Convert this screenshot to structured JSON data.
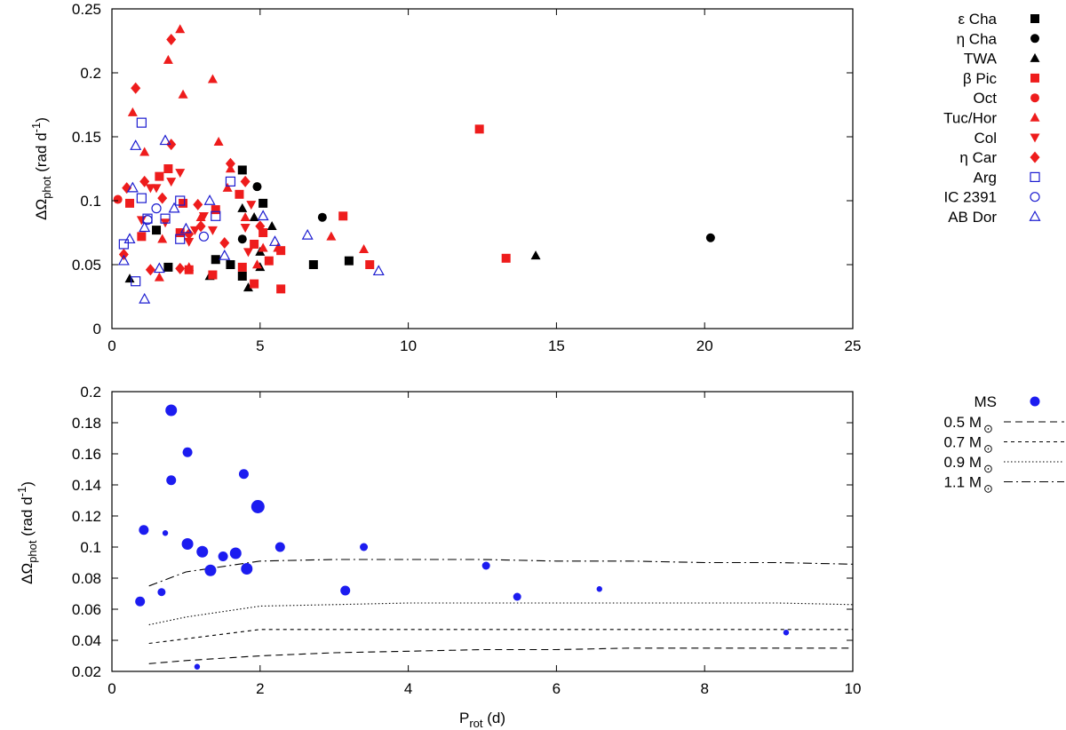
{
  "chart_data": [
    {
      "type": "scatter",
      "title": "",
      "xlabel": "",
      "ylabel_parts": {
        "base": "ΔΩ",
        "sub": "phot",
        "mid": " (rad d",
        "sup": "-1",
        "end": ")"
      },
      "xlim": [
        0,
        25
      ],
      "ylim": [
        0,
        0.25
      ],
      "xticks": [
        0,
        5,
        10,
        15,
        20,
        25
      ],
      "yticks": [
        0,
        0.05,
        0.1,
        0.15,
        0.2,
        0.25
      ],
      "xtick_labels": [
        "0",
        "5",
        "10",
        "15",
        "20",
        "25"
      ],
      "ytick_labels": [
        "0",
        "0.05",
        "0.1",
        "0.15",
        "0.2",
        "0.25"
      ],
      "legend_position": "right",
      "series": [
        {
          "name": "ε Cha",
          "marker": "square",
          "filled": true,
          "color": "#000000",
          "points": [
            [
              1.5,
              0.077
            ],
            [
              1.9,
              0.048
            ],
            [
              3.5,
              0.054
            ],
            [
              4.0,
              0.05
            ],
            [
              4.4,
              0.124
            ],
            [
              4.4,
              0.041
            ],
            [
              5.1,
              0.098
            ],
            [
              6.8,
              0.05
            ],
            [
              8.0,
              0.053
            ]
          ]
        },
        {
          "name": "η Cha",
          "marker": "circle",
          "filled": true,
          "color": "#000000",
          "points": [
            [
              4.4,
              0.07
            ],
            [
              4.9,
              0.111
            ],
            [
              7.1,
              0.087
            ],
            [
              20.2,
              0.071
            ]
          ]
        },
        {
          "name": "TWA",
          "marker": "triangle",
          "filled": true,
          "color": "#000000",
          "points": [
            [
              0.6,
              0.039
            ],
            [
              3.3,
              0.041
            ],
            [
              4.4,
              0.094
            ],
            [
              4.6,
              0.032
            ],
            [
              4.8,
              0.087
            ],
            [
              5.0,
              0.06
            ],
            [
              5.0,
              0.048
            ],
            [
              5.4,
              0.08
            ],
            [
              14.3,
              0.057
            ]
          ]
        },
        {
          "name": "β Pic",
          "marker": "square",
          "filled": true,
          "color": "#ee1c1c",
          "points": [
            [
              0.6,
              0.098
            ],
            [
              1.0,
              0.072
            ],
            [
              1.6,
              0.119
            ],
            [
              1.9,
              0.125
            ],
            [
              2.4,
              0.098
            ],
            [
              2.3,
              0.075
            ],
            [
              2.6,
              0.046
            ],
            [
              3.4,
              0.042
            ],
            [
              3.5,
              0.093
            ],
            [
              4.3,
              0.105
            ],
            [
              4.4,
              0.048
            ],
            [
              4.8,
              0.066
            ],
            [
              4.8,
              0.035
            ],
            [
              5.1,
              0.075
            ],
            [
              5.3,
              0.053
            ],
            [
              5.7,
              0.061
            ],
            [
              5.7,
              0.031
            ],
            [
              7.8,
              0.088
            ],
            [
              8.7,
              0.05
            ],
            [
              12.4,
              0.156
            ],
            [
              13.3,
              0.055
            ]
          ]
        },
        {
          "name": "Oct",
          "marker": "circle",
          "filled": true,
          "color": "#ee1c1c",
          "points": [
            [
              0.2,
              0.101
            ]
          ]
        },
        {
          "name": "Tuc/Hor",
          "marker": "triangle",
          "filled": true,
          "color": "#ee1c1c",
          "points": [
            [
              0.7,
              0.169
            ],
            [
              1.1,
              0.138
            ],
            [
              1.6,
              0.04
            ],
            [
              1.7,
              0.07
            ],
            [
              1.9,
              0.21
            ],
            [
              2.3,
              0.234
            ],
            [
              2.4,
              0.183
            ],
            [
              2.6,
              0.048
            ],
            [
              3.0,
              0.087
            ],
            [
              3.4,
              0.195
            ],
            [
              3.6,
              0.146
            ],
            [
              3.9,
              0.11
            ],
            [
              4.0,
              0.125
            ],
            [
              4.5,
              0.087
            ],
            [
              4.9,
              0.05
            ],
            [
              5.1,
              0.063
            ],
            [
              5.6,
              0.063
            ],
            [
              7.4,
              0.072
            ],
            [
              8.5,
              0.062
            ]
          ]
        },
        {
          "name": "Col",
          "marker": "triangle-down",
          "filled": true,
          "color": "#ee1c1c",
          "points": [
            [
              1.0,
              0.085
            ],
            [
              1.3,
              0.11
            ],
            [
              1.5,
              0.11
            ],
            [
              1.8,
              0.083
            ],
            [
              2.0,
              0.115
            ],
            [
              2.3,
              0.122
            ],
            [
              2.6,
              0.068
            ],
            [
              2.8,
              0.077
            ],
            [
              3.1,
              0.088
            ],
            [
              3.4,
              0.077
            ],
            [
              4.5,
              0.079
            ],
            [
              4.6,
              0.06
            ],
            [
              4.7,
              0.097
            ]
          ]
        },
        {
          "name": "η Car",
          "marker": "diamond",
          "filled": true,
          "color": "#ee1c1c",
          "points": [
            [
              0.4,
              0.058
            ],
            [
              0.5,
              0.11
            ],
            [
              0.8,
              0.188
            ],
            [
              1.1,
              0.115
            ],
            [
              1.3,
              0.046
            ],
            [
              1.7,
              0.102
            ],
            [
              2.0,
              0.144
            ],
            [
              2.0,
              0.226
            ],
            [
              2.3,
              0.047
            ],
            [
              2.6,
              0.074
            ],
            [
              2.9,
              0.097
            ],
            [
              3.0,
              0.08
            ],
            [
              3.8,
              0.067
            ],
            [
              4.0,
              0.129
            ],
            [
              4.5,
              0.115
            ],
            [
              5.0,
              0.08
            ]
          ]
        },
        {
          "name": "Arg",
          "marker": "square",
          "filled": false,
          "color": "#1c1cd0",
          "points": [
            [
              0.4,
              0.066
            ],
            [
              0.8,
              0.037
            ],
            [
              1.0,
              0.161
            ],
            [
              1.0,
              0.102
            ],
            [
              1.2,
              0.086
            ],
            [
              1.8,
              0.086
            ],
            [
              2.3,
              0.1
            ],
            [
              2.3,
              0.07
            ],
            [
              3.5,
              0.088
            ],
            [
              4.0,
              0.115
            ]
          ]
        },
        {
          "name": "IC 2391",
          "marker": "circle",
          "filled": false,
          "color": "#1c1cd0",
          "points": [
            [
              1.2,
              0.085
            ],
            [
              1.5,
              0.094
            ],
            [
              3.1,
              0.072
            ]
          ]
        },
        {
          "name": "AB Dor",
          "marker": "triangle",
          "filled": false,
          "color": "#1c1cd0",
          "points": [
            [
              0.4,
              0.053
            ],
            [
              0.6,
              0.07
            ],
            [
              0.7,
              0.11
            ],
            [
              0.8,
              0.143
            ],
            [
              1.1,
              0.079
            ],
            [
              1.1,
              0.023
            ],
            [
              1.6,
              0.047
            ],
            [
              1.8,
              0.147
            ],
            [
              2.1,
              0.094
            ],
            [
              2.5,
              0.078
            ],
            [
              3.3,
              0.1
            ],
            [
              3.8,
              0.057
            ],
            [
              5.1,
              0.088
            ],
            [
              5.5,
              0.068
            ],
            [
              6.6,
              0.073
            ],
            [
              9.0,
              0.045
            ]
          ]
        }
      ]
    },
    {
      "type": "scatter",
      "title": "",
      "xlabel_parts": {
        "base": "P",
        "sub": "rot",
        "end": " (d)"
      },
      "ylabel_parts": {
        "base": "ΔΩ",
        "sub": "phot",
        "mid": " (rad d",
        "sup": "-1",
        "end": ")"
      },
      "xlim": [
        0,
        10
      ],
      "ylim": [
        0.02,
        0.2
      ],
      "xticks": [
        0,
        2,
        4,
        6,
        8,
        10
      ],
      "yticks": [
        0.02,
        0.04,
        0.06,
        0.08,
        0.1,
        0.12,
        0.14,
        0.16,
        0.18,
        0.2
      ],
      "xtick_labels": [
        "0",
        "2",
        "4",
        "6",
        "8",
        "10"
      ],
      "ytick_labels": [
        "0.02",
        "0.04",
        "0.06",
        "0.08",
        "0.1",
        "0.12",
        "0.14",
        "0.16",
        "0.18",
        "0.2"
      ],
      "legend_position": "right",
      "ms_series": {
        "name": "MS",
        "color": "#1c1cf0",
        "points": [
          {
            "x": 0.38,
            "y": 0.065,
            "size": "medium"
          },
          {
            "x": 0.43,
            "y": 0.111,
            "size": "medium"
          },
          {
            "x": 0.67,
            "y": 0.071,
            "size": "small"
          },
          {
            "x": 0.72,
            "y": 0.109,
            "size": "xsmall"
          },
          {
            "x": 0.8,
            "y": 0.188,
            "size": "large"
          },
          {
            "x": 0.8,
            "y": 0.143,
            "size": "medium"
          },
          {
            "x": 1.02,
            "y": 0.161,
            "size": "medium"
          },
          {
            "x": 1.02,
            "y": 0.102,
            "size": "large"
          },
          {
            "x": 1.15,
            "y": 0.023,
            "size": "xsmall"
          },
          {
            "x": 1.22,
            "y": 0.097,
            "size": "large"
          },
          {
            "x": 1.33,
            "y": 0.085,
            "size": "large"
          },
          {
            "x": 1.5,
            "y": 0.094,
            "size": "medium"
          },
          {
            "x": 1.67,
            "y": 0.096,
            "size": "large"
          },
          {
            "x": 1.78,
            "y": 0.147,
            "size": "medium"
          },
          {
            "x": 1.82,
            "y": 0.086,
            "size": "large"
          },
          {
            "x": 1.97,
            "y": 0.126,
            "size": "xlarge"
          },
          {
            "x": 2.27,
            "y": 0.1,
            "size": "medium"
          },
          {
            "x": 3.15,
            "y": 0.072,
            "size": "medium"
          },
          {
            "x": 3.4,
            "y": 0.1,
            "size": "small"
          },
          {
            "x": 5.05,
            "y": 0.088,
            "size": "small"
          },
          {
            "x": 5.47,
            "y": 0.068,
            "size": "small"
          },
          {
            "x": 6.58,
            "y": 0.073,
            "size": "xsmall"
          },
          {
            "x": 9.1,
            "y": 0.045,
            "size": "xsmall"
          }
        ]
      },
      "curves": [
        {
          "name": "0.5 M",
          "style": "long-dash",
          "x": [
            0.5,
            1,
            2,
            3,
            4,
            5,
            6,
            7,
            8,
            9,
            10
          ],
          "y": [
            0.025,
            0.027,
            0.03,
            0.032,
            0.033,
            0.034,
            0.034,
            0.035,
            0.035,
            0.035,
            0.035
          ]
        },
        {
          "name": "0.7 M",
          "style": "short-dash",
          "x": [
            0.5,
            1,
            2,
            3,
            4,
            5,
            6,
            7,
            8,
            9,
            10
          ],
          "y": [
            0.038,
            0.041,
            0.047,
            0.047,
            0.047,
            0.047,
            0.047,
            0.047,
            0.047,
            0.047,
            0.047
          ]
        },
        {
          "name": "0.9 M",
          "style": "dotted",
          "x": [
            0.5,
            1,
            2,
            3,
            4,
            5,
            6,
            7,
            8,
            9,
            10
          ],
          "y": [
            0.05,
            0.055,
            0.062,
            0.063,
            0.064,
            0.064,
            0.064,
            0.064,
            0.064,
            0.064,
            0.063
          ]
        },
        {
          "name": "1.1 M",
          "style": "dash-dot",
          "x": [
            0.5,
            1,
            2,
            3,
            4,
            5,
            6,
            7,
            8,
            9,
            10
          ],
          "y": [
            0.075,
            0.084,
            0.091,
            0.092,
            0.092,
            0.092,
            0.091,
            0.091,
            0.09,
            0.09,
            0.089
          ]
        }
      ],
      "solar_symbol": "⊙"
    }
  ]
}
